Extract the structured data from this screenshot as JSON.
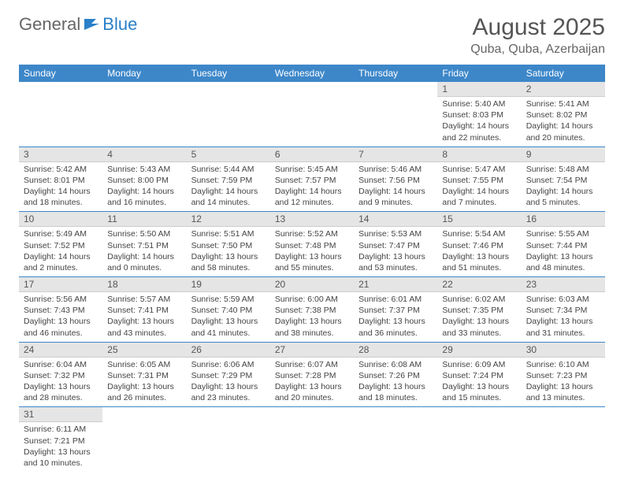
{
  "logo": {
    "part1": "General",
    "part2": "Blue"
  },
  "header": {
    "month": "August 2025",
    "location": "Quba, Quba, Azerbaijan"
  },
  "colors": {
    "header_bg": "#3d87c9",
    "header_text": "#ffffff",
    "daynum_bg": "#e5e5e5",
    "border": "#3d87c9",
    "logo_accent": "#2a7fc9"
  },
  "dayNames": [
    "Sunday",
    "Monday",
    "Tuesday",
    "Wednesday",
    "Thursday",
    "Friday",
    "Saturday"
  ],
  "grid": [
    [
      null,
      null,
      null,
      null,
      null,
      {
        "n": "1",
        "sunrise": "Sunrise: 5:40 AM",
        "sunset": "Sunset: 8:03 PM",
        "daylight": "Daylight: 14 hours and 22 minutes."
      },
      {
        "n": "2",
        "sunrise": "Sunrise: 5:41 AM",
        "sunset": "Sunset: 8:02 PM",
        "daylight": "Daylight: 14 hours and 20 minutes."
      }
    ],
    [
      {
        "n": "3",
        "sunrise": "Sunrise: 5:42 AM",
        "sunset": "Sunset: 8:01 PM",
        "daylight": "Daylight: 14 hours and 18 minutes."
      },
      {
        "n": "4",
        "sunrise": "Sunrise: 5:43 AM",
        "sunset": "Sunset: 8:00 PM",
        "daylight": "Daylight: 14 hours and 16 minutes."
      },
      {
        "n": "5",
        "sunrise": "Sunrise: 5:44 AM",
        "sunset": "Sunset: 7:59 PM",
        "daylight": "Daylight: 14 hours and 14 minutes."
      },
      {
        "n": "6",
        "sunrise": "Sunrise: 5:45 AM",
        "sunset": "Sunset: 7:57 PM",
        "daylight": "Daylight: 14 hours and 12 minutes."
      },
      {
        "n": "7",
        "sunrise": "Sunrise: 5:46 AM",
        "sunset": "Sunset: 7:56 PM",
        "daylight": "Daylight: 14 hours and 9 minutes."
      },
      {
        "n": "8",
        "sunrise": "Sunrise: 5:47 AM",
        "sunset": "Sunset: 7:55 PM",
        "daylight": "Daylight: 14 hours and 7 minutes."
      },
      {
        "n": "9",
        "sunrise": "Sunrise: 5:48 AM",
        "sunset": "Sunset: 7:54 PM",
        "daylight": "Daylight: 14 hours and 5 minutes."
      }
    ],
    [
      {
        "n": "10",
        "sunrise": "Sunrise: 5:49 AM",
        "sunset": "Sunset: 7:52 PM",
        "daylight": "Daylight: 14 hours and 2 minutes."
      },
      {
        "n": "11",
        "sunrise": "Sunrise: 5:50 AM",
        "sunset": "Sunset: 7:51 PM",
        "daylight": "Daylight: 14 hours and 0 minutes."
      },
      {
        "n": "12",
        "sunrise": "Sunrise: 5:51 AM",
        "sunset": "Sunset: 7:50 PM",
        "daylight": "Daylight: 13 hours and 58 minutes."
      },
      {
        "n": "13",
        "sunrise": "Sunrise: 5:52 AM",
        "sunset": "Sunset: 7:48 PM",
        "daylight": "Daylight: 13 hours and 55 minutes."
      },
      {
        "n": "14",
        "sunrise": "Sunrise: 5:53 AM",
        "sunset": "Sunset: 7:47 PM",
        "daylight": "Daylight: 13 hours and 53 minutes."
      },
      {
        "n": "15",
        "sunrise": "Sunrise: 5:54 AM",
        "sunset": "Sunset: 7:46 PM",
        "daylight": "Daylight: 13 hours and 51 minutes."
      },
      {
        "n": "16",
        "sunrise": "Sunrise: 5:55 AM",
        "sunset": "Sunset: 7:44 PM",
        "daylight": "Daylight: 13 hours and 48 minutes."
      }
    ],
    [
      {
        "n": "17",
        "sunrise": "Sunrise: 5:56 AM",
        "sunset": "Sunset: 7:43 PM",
        "daylight": "Daylight: 13 hours and 46 minutes."
      },
      {
        "n": "18",
        "sunrise": "Sunrise: 5:57 AM",
        "sunset": "Sunset: 7:41 PM",
        "daylight": "Daylight: 13 hours and 43 minutes."
      },
      {
        "n": "19",
        "sunrise": "Sunrise: 5:59 AM",
        "sunset": "Sunset: 7:40 PM",
        "daylight": "Daylight: 13 hours and 41 minutes."
      },
      {
        "n": "20",
        "sunrise": "Sunrise: 6:00 AM",
        "sunset": "Sunset: 7:38 PM",
        "daylight": "Daylight: 13 hours and 38 minutes."
      },
      {
        "n": "21",
        "sunrise": "Sunrise: 6:01 AM",
        "sunset": "Sunset: 7:37 PM",
        "daylight": "Daylight: 13 hours and 36 minutes."
      },
      {
        "n": "22",
        "sunrise": "Sunrise: 6:02 AM",
        "sunset": "Sunset: 7:35 PM",
        "daylight": "Daylight: 13 hours and 33 minutes."
      },
      {
        "n": "23",
        "sunrise": "Sunrise: 6:03 AM",
        "sunset": "Sunset: 7:34 PM",
        "daylight": "Daylight: 13 hours and 31 minutes."
      }
    ],
    [
      {
        "n": "24",
        "sunrise": "Sunrise: 6:04 AM",
        "sunset": "Sunset: 7:32 PM",
        "daylight": "Daylight: 13 hours and 28 minutes."
      },
      {
        "n": "25",
        "sunrise": "Sunrise: 6:05 AM",
        "sunset": "Sunset: 7:31 PM",
        "daylight": "Daylight: 13 hours and 26 minutes."
      },
      {
        "n": "26",
        "sunrise": "Sunrise: 6:06 AM",
        "sunset": "Sunset: 7:29 PM",
        "daylight": "Daylight: 13 hours and 23 minutes."
      },
      {
        "n": "27",
        "sunrise": "Sunrise: 6:07 AM",
        "sunset": "Sunset: 7:28 PM",
        "daylight": "Daylight: 13 hours and 20 minutes."
      },
      {
        "n": "28",
        "sunrise": "Sunrise: 6:08 AM",
        "sunset": "Sunset: 7:26 PM",
        "daylight": "Daylight: 13 hours and 18 minutes."
      },
      {
        "n": "29",
        "sunrise": "Sunrise: 6:09 AM",
        "sunset": "Sunset: 7:24 PM",
        "daylight": "Daylight: 13 hours and 15 minutes."
      },
      {
        "n": "30",
        "sunrise": "Sunrise: 6:10 AM",
        "sunset": "Sunset: 7:23 PM",
        "daylight": "Daylight: 13 hours and 13 minutes."
      }
    ],
    [
      {
        "n": "31",
        "sunrise": "Sunrise: 6:11 AM",
        "sunset": "Sunset: 7:21 PM",
        "daylight": "Daylight: 13 hours and 10 minutes."
      },
      null,
      null,
      null,
      null,
      null,
      null
    ]
  ]
}
